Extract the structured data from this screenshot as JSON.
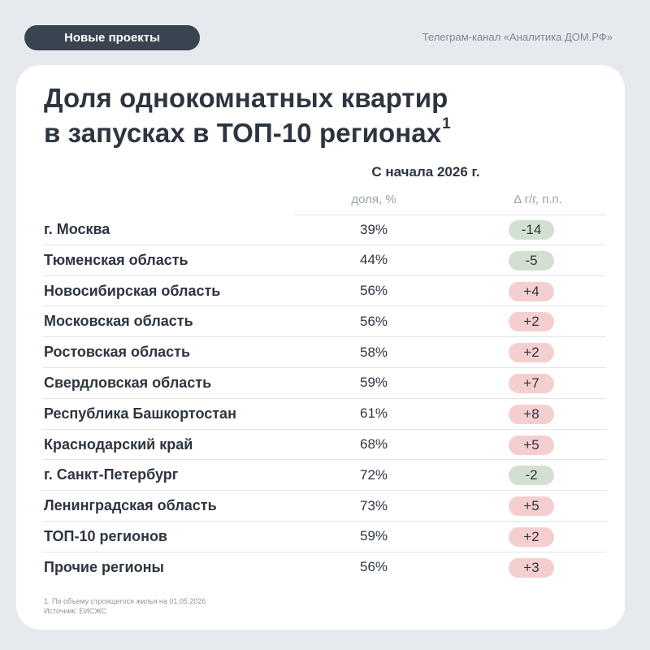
{
  "header": {
    "tag": "Новые проекты",
    "channel": "Телеграм-канал «Аналитика ДОМ.РФ»"
  },
  "title": {
    "line1": "Доля однокомнатных квартир",
    "line2": "в запусках в ТОП-10 регионах",
    "footnote_mark": "1"
  },
  "table": {
    "period": "С начала 2026 г.",
    "col_share": "доля, %",
    "col_delta": "Δ г/г, п.п.",
    "rows": [
      {
        "region": "г. Москва",
        "share": "39%",
        "delta": "-14",
        "sign": "neg"
      },
      {
        "region": "Тюменская область",
        "share": "44%",
        "delta": "-5",
        "sign": "neg"
      },
      {
        "region": "Новосибирская область",
        "share": "56%",
        "delta": "+4",
        "sign": "pos"
      },
      {
        "region": "Московская область",
        "share": "56%",
        "delta": "+2",
        "sign": "pos"
      },
      {
        "region": "Ростовская область",
        "share": "58%",
        "delta": "+2",
        "sign": "pos"
      },
      {
        "region": "Свердловская область",
        "share": "59%",
        "delta": "+7",
        "sign": "pos"
      },
      {
        "region": "Республика Башкортостан",
        "share": "61%",
        "delta": "+8",
        "sign": "pos"
      },
      {
        "region": "Краснодарский край",
        "share": "68%",
        "delta": "+5",
        "sign": "pos"
      },
      {
        "region": "г. Санкт-Петербург",
        "share": "72%",
        "delta": "-2",
        "sign": "neg"
      },
      {
        "region": "Ленинградская область",
        "share": "73%",
        "delta": "+5",
        "sign": "pos"
      },
      {
        "region": "ТОП-10 регионов",
        "share": "59%",
        "delta": "+2",
        "sign": "pos"
      },
      {
        "region": "Прочие регионы",
        "share": "56%",
        "delta": "+3",
        "sign": "pos"
      }
    ]
  },
  "footnote": {
    "line1": "1. По объему строящегося жилья на 01.05.2026",
    "line2": "Источник: ЕИСЖС"
  },
  "colors": {
    "background": "#e6eaef",
    "tag_bg": "#3a4350",
    "negative_pill": "#d2e0d2",
    "positive_pill": "#f5cfcf",
    "text": "#2d3540"
  }
}
